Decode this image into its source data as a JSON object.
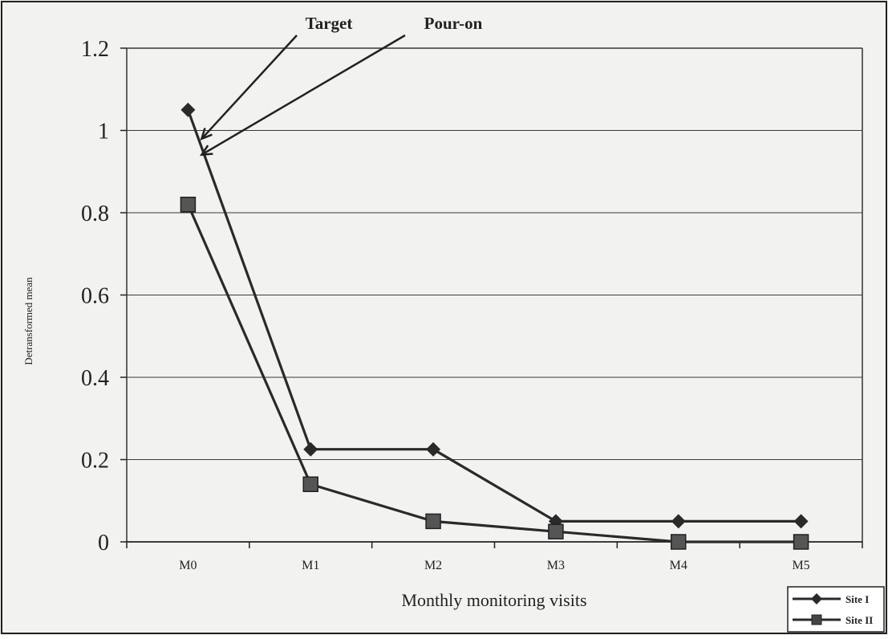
{
  "chart_data": {
    "type": "line",
    "title": "",
    "xlabel": "Monthly monitoring visits",
    "ylabel": "Detransformed mean",
    "categories": [
      "M0",
      "M1",
      "M2",
      "M3",
      "M4",
      "M5"
    ],
    "ylim": [
      0,
      1.2
    ],
    "yticks": [
      "0",
      "0.2",
      "0.4",
      "0.6",
      "0.8",
      "1",
      "1.2"
    ],
    "grid": true,
    "legend_position": "bottom-right",
    "series": [
      {
        "name": "Site I",
        "marker": "diamond",
        "values": [
          1.05,
          0.225,
          0.225,
          0.05,
          0.05,
          0.05
        ]
      },
      {
        "name": "Site II",
        "marker": "square",
        "values": [
          0.82,
          0.14,
          0.05,
          0.025,
          0.0,
          0.0
        ]
      }
    ],
    "annotations": [
      {
        "text": "Target",
        "series": 0,
        "point": 0
      },
      {
        "text": "Pour-on",
        "series": 1,
        "point": 0
      }
    ],
    "colors": {
      "line": "#2a2a2a",
      "grid": "#3a3a3a",
      "background": "#f2f2f0",
      "border": "#222222"
    }
  }
}
